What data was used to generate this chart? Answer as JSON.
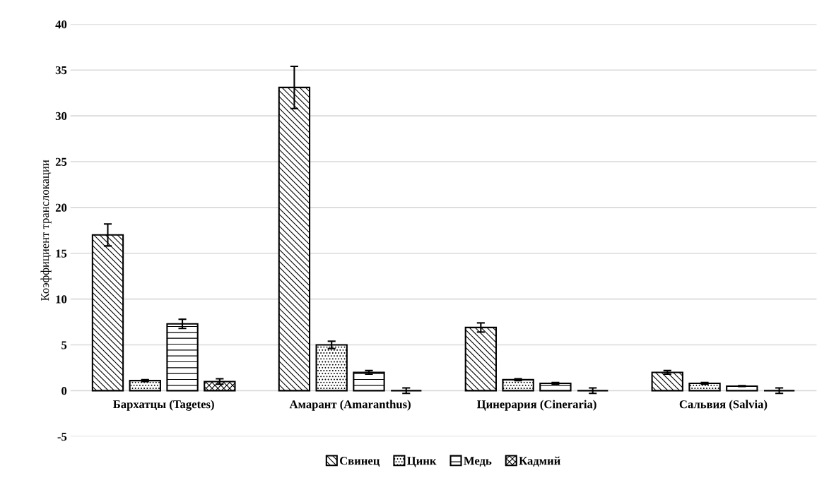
{
  "chart_data": {
    "type": "bar",
    "ylabel": "Коэффициент транслокации",
    "categories": [
      "Бархатцы (Tagetes)",
      "Амарант (Amaranthus)",
      "Цинерария (Cineraria)",
      "Сальвия (Salvia)"
    ],
    "series": [
      {
        "name": "Свинец",
        "color": "#000000",
        "values": [
          17.0,
          33.1,
          6.9,
          2.0
        ],
        "errors": [
          1.2,
          2.3,
          0.5,
          0.2
        ]
      },
      {
        "name": "Цинк",
        "color": "#000000",
        "values": [
          1.1,
          5.0,
          1.2,
          0.8
        ],
        "errors": [
          0.1,
          0.4,
          0.1,
          0.1
        ]
      },
      {
        "name": "Медь",
        "color": "#000000",
        "values": [
          7.3,
          2.0,
          0.8,
          0.5
        ],
        "errors": [
          0.5,
          0.2,
          0.1,
          0.05
        ]
      },
      {
        "name": "Кадмий",
        "color": "#000000",
        "values": [
          1.0,
          0.0,
          0.0,
          0.0
        ],
        "errors": [
          0.3,
          0.3,
          0.3,
          0.3
        ]
      }
    ],
    "ylim": [
      -5,
      40
    ],
    "yticks": [
      -5,
      0,
      5,
      10,
      15,
      20,
      25,
      30,
      35,
      40
    ],
    "grid": "y",
    "legend": "bottom"
  }
}
